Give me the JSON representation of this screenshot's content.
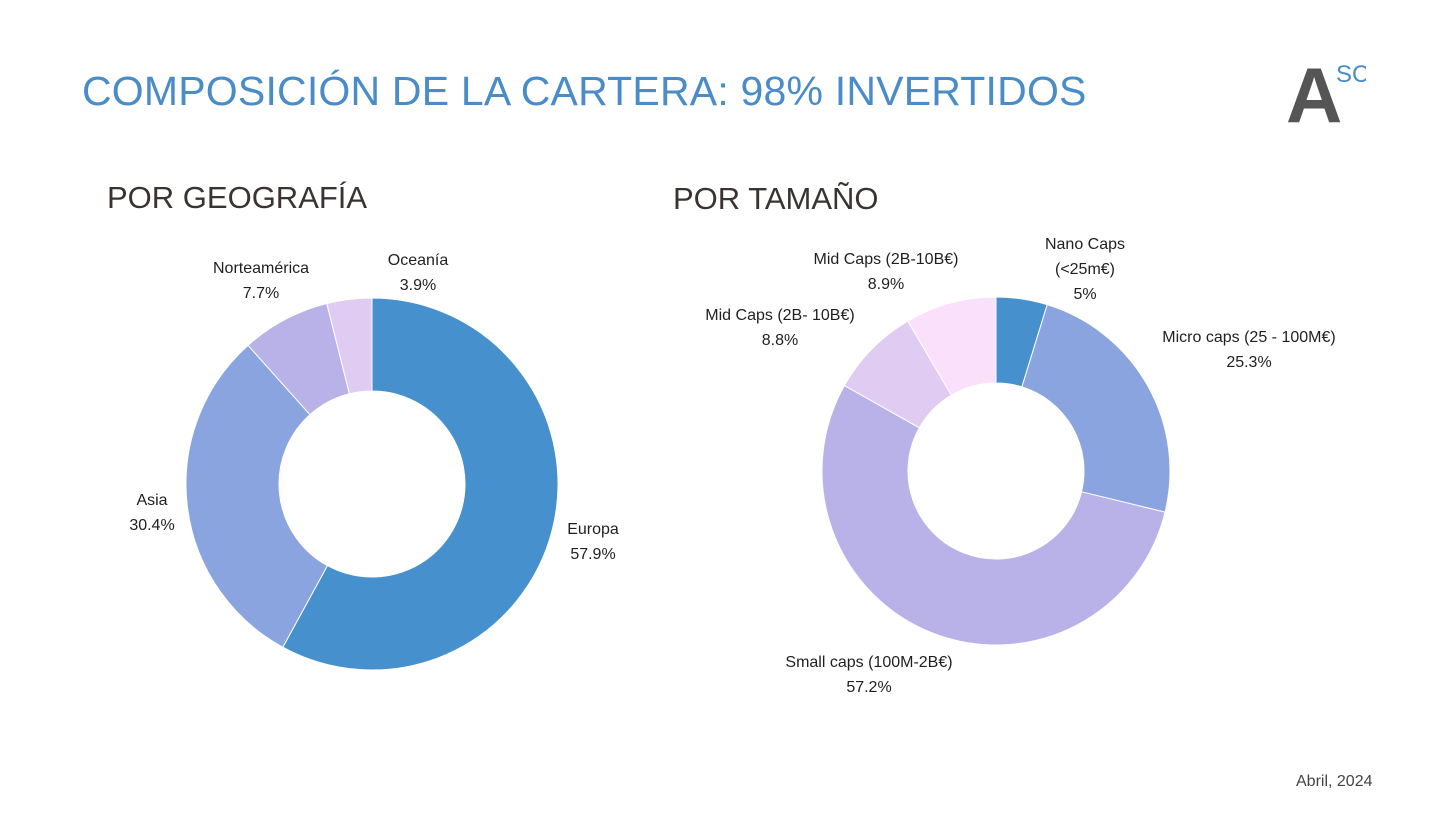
{
  "header": {
    "title": "COMPOSICIÓN DE LA CARTERA: 98% INVERTIDOS"
  },
  "logo": {
    "letter": "A",
    "superscript": "SC",
    "letter_color": "#555555",
    "superscript_color": "#4a8cc8"
  },
  "footer": {
    "date": "Abril, 2024"
  },
  "colors": {
    "title": "#4a8cc8",
    "subtitle": "#3a3331"
  },
  "chart_data": [
    {
      "type": "pie",
      "title": "POR GEOGRAFÍA",
      "slices": [
        {
          "name": "Europa",
          "value": 57.9,
          "value_label": "57.9%",
          "color": "#4690cd"
        },
        {
          "name": "Asia",
          "value": 30.4,
          "value_label": "30.4%",
          "color": "#8aa4e0"
        },
        {
          "name": "Norteamérica",
          "value": 7.7,
          "value_label": "7.7%",
          "color": "#b8b2e8"
        },
        {
          "name": "Oceanía",
          "value": 3.9,
          "value_label": "3.9%",
          "color": "#e0cbf3"
        }
      ]
    },
    {
      "type": "pie",
      "title": "POR TAMAÑO",
      "slices": [
        {
          "name_lines": [
            "Nano Caps",
            "(<25m€)"
          ],
          "value": 5,
          "value_label": "5%",
          "color": "#4690cd"
        },
        {
          "name_lines": [
            "Micro caps (25 - 100M€)"
          ],
          "value": 25.3,
          "value_label": "25.3%",
          "color": "#8aa4e0"
        },
        {
          "name_lines": [
            "Small caps (100M-2B€)"
          ],
          "value": 57.2,
          "value_label": "57.2%",
          "color": "#b8b2e8"
        },
        {
          "name_lines": [
            "Mid Caps (2B- 10B€)"
          ],
          "value": 8.8,
          "value_label": "8.8%",
          "color": "#e0cbf3"
        },
        {
          "name_lines": [
            "Mid Caps (2B-10B€)"
          ],
          "value": 8.9,
          "value_label": "8.9%",
          "color": "#fbe0fb"
        }
      ]
    }
  ]
}
